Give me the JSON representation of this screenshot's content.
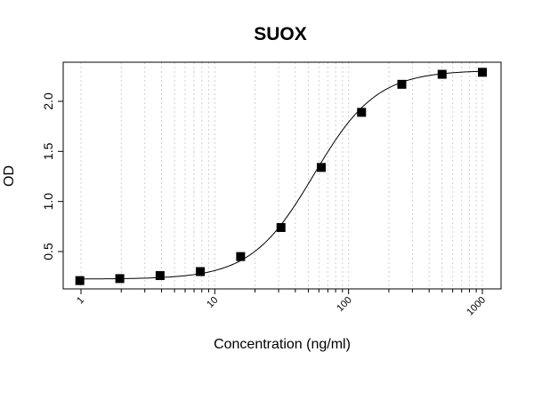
{
  "chart_data": {
    "type": "scatter",
    "title": "SUOX",
    "xlabel": "Concentration (ng/ml)",
    "ylabel": "OD",
    "x_scale": "log",
    "xlim": [
      0.8,
      1300
    ],
    "ylim": [
      0.15,
      2.37
    ],
    "x_ticks": [
      1,
      10,
      100,
      1000
    ],
    "x_tick_labels": [
      "1",
      "10",
      "100",
      "1000"
    ],
    "y_ticks": [
      0.5,
      1.0,
      1.5,
      2.0
    ],
    "y_tick_labels": [
      "0.5",
      "1.0",
      "1.5",
      "2.0"
    ],
    "grid": "vertical dotted at log minor ticks",
    "series": [
      {
        "marker": "square",
        "color": "#000000",
        "x": [
          0.98,
          1.95,
          3.9,
          7.8,
          15.6,
          31.25,
          62.5,
          125,
          250,
          500,
          1000
        ],
        "y": [
          0.21,
          0.23,
          0.26,
          0.3,
          0.45,
          0.74,
          1.34,
          1.89,
          2.17,
          2.27,
          2.29
        ]
      }
    ],
    "fit_curve": {
      "model": "4PL",
      "bottom": 0.225,
      "top": 2.31,
      "ec50": 55,
      "hill": 1.85
    }
  }
}
